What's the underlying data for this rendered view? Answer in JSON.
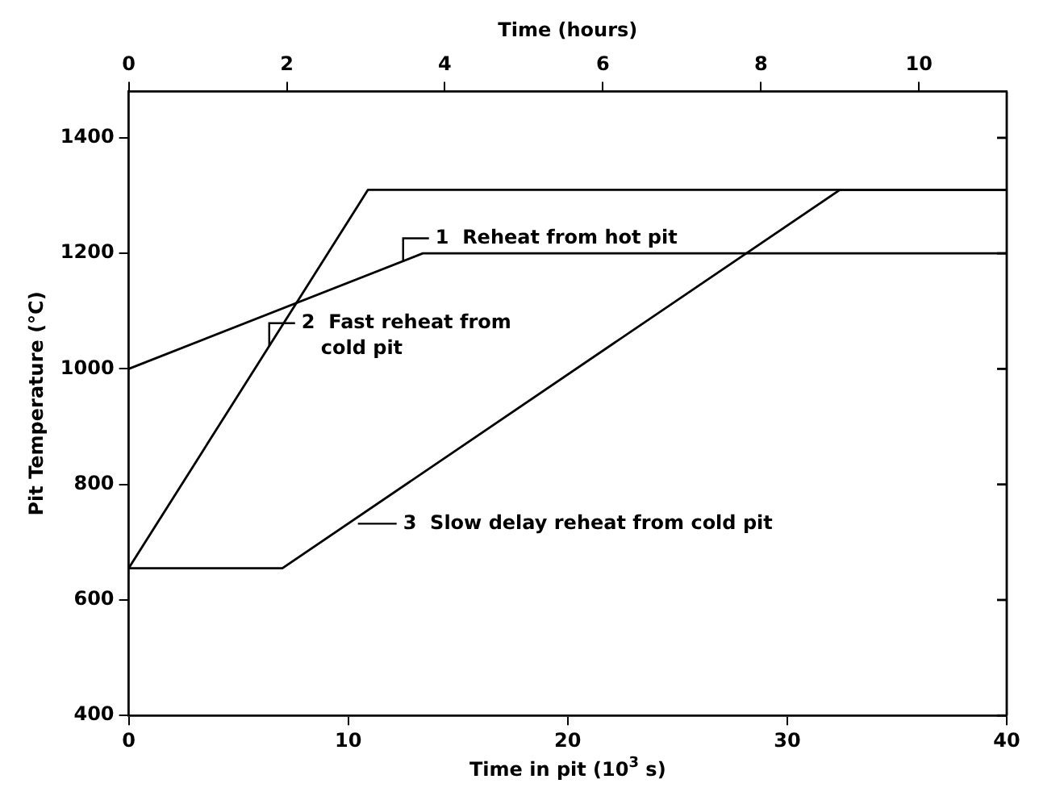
{
  "chart_data": {
    "type": "line",
    "xlabel": "Time in pit (10$^{3}$ s)",
    "x2label": "Time (hours)",
    "ylabel": "Pit Temperature (°C)",
    "xlim": [
      0,
      40
    ],
    "xticks": [
      0,
      10,
      20,
      30,
      40
    ],
    "x2lim": [
      0,
      11.11
    ],
    "x2ticks": [
      0,
      2,
      4,
      6,
      8,
      10
    ],
    "ylim": [
      400,
      1480
    ],
    "yticks": [
      400,
      600,
      800,
      1000,
      1200,
      1400
    ],
    "grid": false,
    "legend": false,
    "marker": "none",
    "line_style": "solid",
    "series": [
      {
        "color": "#000000",
        "x": [
          0,
          13.4,
          40
        ],
        "values": [
          1000,
          1200,
          1200
        ]
      },
      {
        "color": "#000000",
        "x": [
          0,
          10.9,
          40
        ],
        "values": [
          655,
          1310,
          1310
        ]
      },
      {
        "color": "#000000",
        "x": [
          0,
          7.0,
          32.4,
          40
        ],
        "values": [
          655,
          655,
          1310,
          1310
        ]
      }
    ],
    "annotations": [
      {
        "text": "1  Reheat from hot pit",
        "x": 12.5,
        "y": 1187
      },
      {
        "text": "2  Fast reheat from\ncold pit",
        "x": 6.4,
        "y": 1040
      },
      {
        "text": "3  Slow delay reheat from cold pit",
        "x": 10.0,
        "y": 732
      }
    ]
  }
}
